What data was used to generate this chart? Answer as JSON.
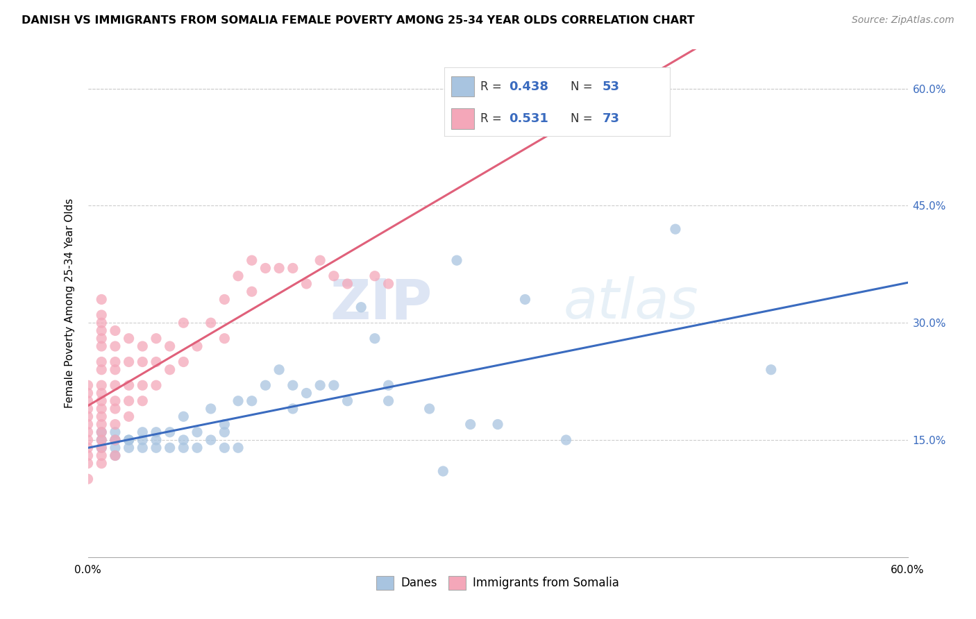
{
  "title": "DANISH VS IMMIGRANTS FROM SOMALIA FEMALE POVERTY AMONG 25-34 YEAR OLDS CORRELATION CHART",
  "source": "Source: ZipAtlas.com",
  "ylabel": "Female Poverty Among 25-34 Year Olds",
  "xlim": [
    0.0,
    0.6
  ],
  "ylim": [
    0.0,
    0.65
  ],
  "ytick_values": [
    0.15,
    0.3,
    0.45,
    0.6
  ],
  "ytick_labels": [
    "15.0%",
    "30.0%",
    "45.0%",
    "60.0%"
  ],
  "danes_color": "#a8c4e0",
  "somalia_color": "#f4a7b9",
  "danes_line_color": "#3a6bbf",
  "somalia_line_color": "#e0607a",
  "danes_R": 0.438,
  "danes_N": 53,
  "somalia_R": 0.531,
  "somalia_N": 73,
  "legend_danes_label": "Danes",
  "legend_somalia_label": "Immigrants from Somalia",
  "watermark_zip": "ZIP",
  "watermark_atlas": "atlas",
  "danes_x": [
    0.01,
    0.01,
    0.01,
    0.02,
    0.02,
    0.02,
    0.02,
    0.02,
    0.03,
    0.03,
    0.03,
    0.04,
    0.04,
    0.04,
    0.05,
    0.05,
    0.05,
    0.06,
    0.06,
    0.07,
    0.07,
    0.07,
    0.08,
    0.08,
    0.09,
    0.09,
    0.1,
    0.1,
    0.1,
    0.11,
    0.11,
    0.12,
    0.13,
    0.14,
    0.15,
    0.15,
    0.16,
    0.17,
    0.18,
    0.19,
    0.2,
    0.21,
    0.22,
    0.22,
    0.25,
    0.26,
    0.27,
    0.28,
    0.3,
    0.32,
    0.35,
    0.43,
    0.5
  ],
  "danes_y": [
    0.14,
    0.15,
    0.16,
    0.13,
    0.14,
    0.15,
    0.15,
    0.16,
    0.14,
    0.15,
    0.15,
    0.14,
    0.15,
    0.16,
    0.14,
    0.15,
    0.16,
    0.14,
    0.16,
    0.14,
    0.15,
    0.18,
    0.14,
    0.16,
    0.15,
    0.19,
    0.14,
    0.16,
    0.17,
    0.14,
    0.2,
    0.2,
    0.22,
    0.24,
    0.19,
    0.22,
    0.21,
    0.22,
    0.22,
    0.2,
    0.32,
    0.28,
    0.2,
    0.22,
    0.19,
    0.11,
    0.38,
    0.17,
    0.17,
    0.33,
    0.15,
    0.42,
    0.24
  ],
  "somalia_x": [
    0.0,
    0.0,
    0.0,
    0.0,
    0.0,
    0.0,
    0.0,
    0.0,
    0.0,
    0.0,
    0.0,
    0.0,
    0.01,
    0.01,
    0.01,
    0.01,
    0.01,
    0.01,
    0.01,
    0.01,
    0.01,
    0.01,
    0.01,
    0.01,
    0.01,
    0.01,
    0.01,
    0.01,
    0.01,
    0.01,
    0.01,
    0.02,
    0.02,
    0.02,
    0.02,
    0.02,
    0.02,
    0.02,
    0.02,
    0.02,
    0.02,
    0.03,
    0.03,
    0.03,
    0.03,
    0.03,
    0.04,
    0.04,
    0.04,
    0.04,
    0.05,
    0.05,
    0.05,
    0.06,
    0.06,
    0.07,
    0.07,
    0.08,
    0.09,
    0.1,
    0.1,
    0.11,
    0.12,
    0.12,
    0.13,
    0.14,
    0.15,
    0.16,
    0.17,
    0.18,
    0.19,
    0.21,
    0.22
  ],
  "somalia_y": [
    0.1,
    0.12,
    0.13,
    0.14,
    0.15,
    0.16,
    0.17,
    0.18,
    0.19,
    0.2,
    0.21,
    0.22,
    0.12,
    0.13,
    0.14,
    0.15,
    0.16,
    0.17,
    0.18,
    0.19,
    0.2,
    0.21,
    0.22,
    0.24,
    0.25,
    0.27,
    0.28,
    0.29,
    0.3,
    0.31,
    0.33,
    0.13,
    0.15,
    0.17,
    0.19,
    0.2,
    0.22,
    0.24,
    0.25,
    0.27,
    0.29,
    0.18,
    0.2,
    0.22,
    0.25,
    0.28,
    0.2,
    0.22,
    0.25,
    0.27,
    0.22,
    0.25,
    0.28,
    0.24,
    0.27,
    0.25,
    0.3,
    0.27,
    0.3,
    0.28,
    0.33,
    0.36,
    0.34,
    0.38,
    0.37,
    0.37,
    0.37,
    0.35,
    0.38,
    0.36,
    0.35,
    0.36,
    0.35
  ]
}
